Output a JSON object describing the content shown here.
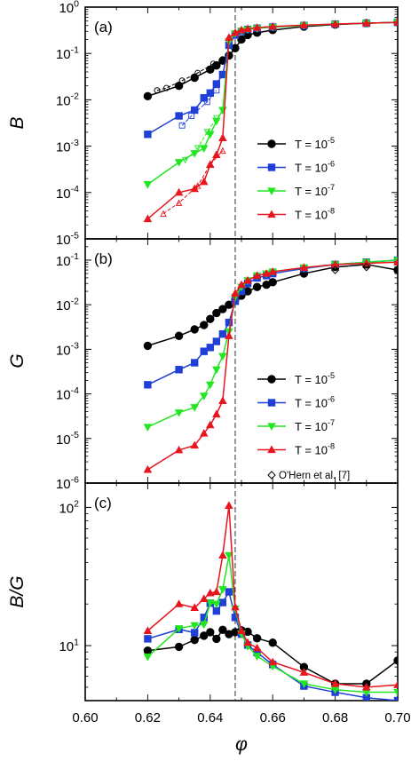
{
  "figure": {
    "xlabel": "φ",
    "xticks": [
      "0.60",
      "0.62",
      "0.64",
      "0.66",
      "0.68",
      "0.70"
    ],
    "vline_x": 0.648,
    "legend_labels": [
      "T = 10",
      "T = 10",
      "T = 10",
      "T = 10"
    ],
    "legend_exps": [
      "-5",
      "-6",
      "-7",
      "-8"
    ],
    "extra_legend": "O'Hern et al. [7]"
  },
  "chart_data": [
    {
      "type": "line",
      "panel_label": "(a)",
      "ylabel": "B",
      "yscale": "log",
      "ylim": [
        1e-05,
        1
      ],
      "yticks": [
        {
          "base": "10",
          "exp": "-5"
        },
        {
          "base": "10",
          "exp": "-4"
        },
        {
          "base": "10",
          "exp": "-3"
        },
        {
          "base": "10",
          "exp": "-2"
        },
        {
          "base": "10",
          "exp": "-1"
        },
        {
          "base": "10",
          "exp": "0"
        }
      ],
      "xlim": [
        0.6,
        0.7
      ],
      "legend_position": "bottom-right",
      "series": [
        {
          "name": "T = 10^-5",
          "color": "#000000",
          "marker": "circle",
          "x": [
            0.62,
            0.63,
            0.635,
            0.64,
            0.642,
            0.644,
            0.646,
            0.648,
            0.65,
            0.652,
            0.655,
            0.66,
            0.67,
            0.68,
            0.69,
            0.7
          ],
          "y": [
            0.012,
            0.02,
            0.03,
            0.045,
            0.055,
            0.07,
            0.09,
            0.13,
            0.2,
            0.25,
            0.28,
            0.32,
            0.38,
            0.42,
            0.45,
            0.47
          ]
        },
        {
          "name": "T = 10^-6",
          "color": "#1f3fd6",
          "marker": "square",
          "x": [
            0.62,
            0.63,
            0.635,
            0.638,
            0.64,
            0.642,
            0.644,
            0.646,
            0.648,
            0.65,
            0.652,
            0.655,
            0.66,
            0.67,
            0.68,
            0.69,
            0.7
          ],
          "y": [
            0.0018,
            0.0045,
            0.006,
            0.011,
            0.014,
            0.022,
            0.035,
            0.15,
            0.25,
            0.3,
            0.33,
            0.35,
            0.37,
            0.4,
            0.43,
            0.45,
            0.47
          ]
        },
        {
          "name": "T = 10^-7",
          "color": "#22e622",
          "marker": "triangle-down",
          "x": [
            0.62,
            0.63,
            0.635,
            0.638,
            0.64,
            0.642,
            0.644,
            0.646,
            0.648,
            0.65,
            0.652,
            0.655,
            0.66,
            0.67,
            0.68,
            0.69,
            0.7
          ],
          "y": [
            0.00015,
            0.00045,
            0.0007,
            0.0009,
            0.0018,
            0.0035,
            0.006,
            0.18,
            0.27,
            0.31,
            0.33,
            0.35,
            0.37,
            0.4,
            0.43,
            0.45,
            0.47
          ]
        },
        {
          "name": "T = 10^-8",
          "color": "#e8141e",
          "marker": "triangle-up",
          "x": [
            0.62,
            0.63,
            0.635,
            0.638,
            0.64,
            0.642,
            0.644,
            0.646,
            0.648,
            0.65,
            0.652,
            0.655,
            0.66,
            0.67,
            0.68,
            0.69,
            0.7
          ],
          "y": [
            2.7e-05,
            0.0001,
            0.00012,
            0.00017,
            0.0004,
            0.00065,
            0.0015,
            0.22,
            0.28,
            0.32,
            0.34,
            0.36,
            0.38,
            0.41,
            0.43,
            0.45,
            0.47
          ]
        }
      ],
      "reference_series": [
        {
          "color": "#000000",
          "x": [
            0.623,
            0.626,
            0.631,
            0.636,
            0.641,
            0.644
          ],
          "y": [
            0.016,
            0.018,
            0.026,
            0.038,
            0.06,
            0.075
          ]
        },
        {
          "color": "#1f3fd6",
          "x": [
            0.631,
            0.634,
            0.639,
            0.642
          ],
          "y": [
            0.0028,
            0.0045,
            0.009,
            0.016
          ]
        },
        {
          "color": "#22e622",
          "x": [
            0.632,
            0.636,
            0.639,
            0.642
          ],
          "y": [
            0.0005,
            0.0009,
            0.002,
            0.004
          ]
        },
        {
          "color": "#e8141e",
          "x": [
            0.625,
            0.63,
            0.636,
            0.64,
            0.644
          ],
          "y": [
            3.5e-05,
            6e-05,
            0.00014,
            0.0004,
            0.0008
          ]
        }
      ]
    },
    {
      "type": "line",
      "panel_label": "(b)",
      "ylabel": "G",
      "yscale": "log",
      "ylim": [
        1e-06,
        0.3
      ],
      "yticks": [
        {
          "base": "10",
          "exp": "-6"
        },
        {
          "base": "10",
          "exp": "-5"
        },
        {
          "base": "10",
          "exp": "-4"
        },
        {
          "base": "10",
          "exp": "-3"
        },
        {
          "base": "10",
          "exp": "-2"
        },
        {
          "base": "10",
          "exp": "-1"
        }
      ],
      "xlim": [
        0.6,
        0.7
      ],
      "legend_position": "bottom-right",
      "series": [
        {
          "name": "T = 10^-5",
          "color": "#000000",
          "marker": "circle",
          "x": [
            0.62,
            0.63,
            0.635,
            0.638,
            0.64,
            0.642,
            0.644,
            0.646,
            0.648,
            0.65,
            0.652,
            0.655,
            0.658,
            0.66,
            0.67,
            0.68,
            0.69,
            0.7
          ],
          "y": [
            0.0012,
            0.002,
            0.0028,
            0.0035,
            0.0048,
            0.0065,
            0.008,
            0.01,
            0.013,
            0.016,
            0.02,
            0.025,
            0.028,
            0.032,
            0.05,
            0.07,
            0.08,
            0.06
          ]
        },
        {
          "name": "T = 10^-6",
          "color": "#1f3fd6",
          "marker": "square",
          "x": [
            0.62,
            0.63,
            0.635,
            0.638,
            0.64,
            0.642,
            0.644,
            0.646,
            0.648,
            0.65,
            0.652,
            0.655,
            0.658,
            0.66,
            0.67,
            0.68,
            0.69,
            0.7
          ],
          "y": [
            0.00016,
            0.00035,
            0.0005,
            0.0009,
            0.0011,
            0.0015,
            0.0022,
            0.004,
            0.012,
            0.02,
            0.03,
            0.04,
            0.045,
            0.05,
            0.065,
            0.08,
            0.09,
            0.1
          ]
        },
        {
          "name": "T = 10^-7",
          "color": "#22e622",
          "marker": "triangle-down",
          "x": [
            0.62,
            0.63,
            0.635,
            0.638,
            0.64,
            0.642,
            0.644,
            0.646,
            0.648,
            0.65,
            0.652,
            0.655,
            0.658,
            0.66,
            0.67,
            0.68,
            0.69,
            0.7
          ],
          "y": [
            1.8e-05,
            3.8e-05,
            5e-05,
            9e-05,
            0.00016,
            0.00035,
            0.0007,
            0.0025,
            0.015,
            0.025,
            0.035,
            0.045,
            0.05,
            0.055,
            0.068,
            0.08,
            0.09,
            0.1
          ]
        },
        {
          "name": "T = 10^-8",
          "color": "#e8141e",
          "marker": "triangle-up",
          "x": [
            0.62,
            0.63,
            0.635,
            0.638,
            0.64,
            0.642,
            0.644,
            0.646,
            0.648,
            0.65,
            0.652,
            0.655,
            0.658,
            0.66,
            0.67,
            0.68,
            0.69,
            0.7
          ],
          "y": [
            2e-06,
            5.5e-06,
            7e-06,
            1.3e-05,
            2e-05,
            3.5e-05,
            7e-05,
            0.002,
            0.018,
            0.028,
            0.035,
            0.045,
            0.05,
            0.055,
            0.068,
            0.08,
            0.085,
            0.09
          ]
        }
      ],
      "reference_points": {
        "color": "#000000",
        "marker": "diamond-open",
        "x": [
          0.68,
          0.69
        ],
        "y": [
          0.06,
          0.07
        ]
      }
    },
    {
      "type": "line",
      "panel_label": "(c)",
      "ylabel": "B/G",
      "yscale": "log",
      "ylim": [
        4,
        150
      ],
      "yticks": [
        {
          "base": "10",
          "exp": "1"
        },
        {
          "base": "10",
          "exp": "2"
        }
      ],
      "xlim": [
        0.6,
        0.7
      ],
      "series": [
        {
          "name": "T = 10^-5",
          "color": "#000000",
          "marker": "circle",
          "x": [
            0.62,
            0.63,
            0.635,
            0.638,
            0.64,
            0.642,
            0.644,
            0.646,
            0.648,
            0.65,
            0.652,
            0.655,
            0.66,
            0.67,
            0.68,
            0.69,
            0.7
          ],
          "y": [
            9.2,
            9.8,
            11,
            11.8,
            12.5,
            11.2,
            13,
            12.1,
            12.5,
            12.9,
            12.6,
            11.3,
            10.5,
            7,
            5.3,
            5.3,
            7.8
          ]
        },
        {
          "name": "T = 10^-6",
          "color": "#1f3fd6",
          "marker": "square",
          "x": [
            0.62,
            0.63,
            0.635,
            0.638,
            0.64,
            0.642,
            0.644,
            0.646,
            0.648,
            0.65,
            0.652,
            0.655,
            0.66,
            0.67,
            0.68,
            0.69,
            0.7
          ],
          "y": [
            11.2,
            13.1,
            12.4,
            16,
            20.3,
            17.8,
            20.5,
            24.5,
            16,
            12.1,
            10.1,
            8.9,
            7.3,
            5.1,
            4.6,
            4.2,
            4.0
          ]
        },
        {
          "name": "T = 10^-7",
          "color": "#22e622",
          "marker": "triangle-down",
          "x": [
            0.62,
            0.63,
            0.635,
            0.638,
            0.64,
            0.642,
            0.644,
            0.646,
            0.648,
            0.65,
            0.652,
            0.655,
            0.66,
            0.67,
            0.68,
            0.69,
            0.7
          ],
          "y": [
            8.3,
            13.3,
            14,
            14.2,
            20.4,
            20,
            25.5,
            45,
            18.5,
            12.2,
            9.9,
            8.4,
            7.1,
            5.3,
            4.8,
            4.6,
            4.6
          ]
        },
        {
          "name": "T = 10^-8",
          "color": "#e8141e",
          "marker": "triangle-up",
          "x": [
            0.62,
            0.63,
            0.635,
            0.638,
            0.64,
            0.642,
            0.644,
            0.646,
            0.648,
            0.65,
            0.652,
            0.655,
            0.66,
            0.67,
            0.68,
            0.69,
            0.7
          ],
          "y": [
            12.8,
            20,
            18.8,
            21.8,
            24,
            24.5,
            45,
            103,
            19,
            12.8,
            10.5,
            9.6,
            7.6,
            6.4,
            5.3,
            5.0,
            5.2
          ]
        }
      ]
    }
  ]
}
